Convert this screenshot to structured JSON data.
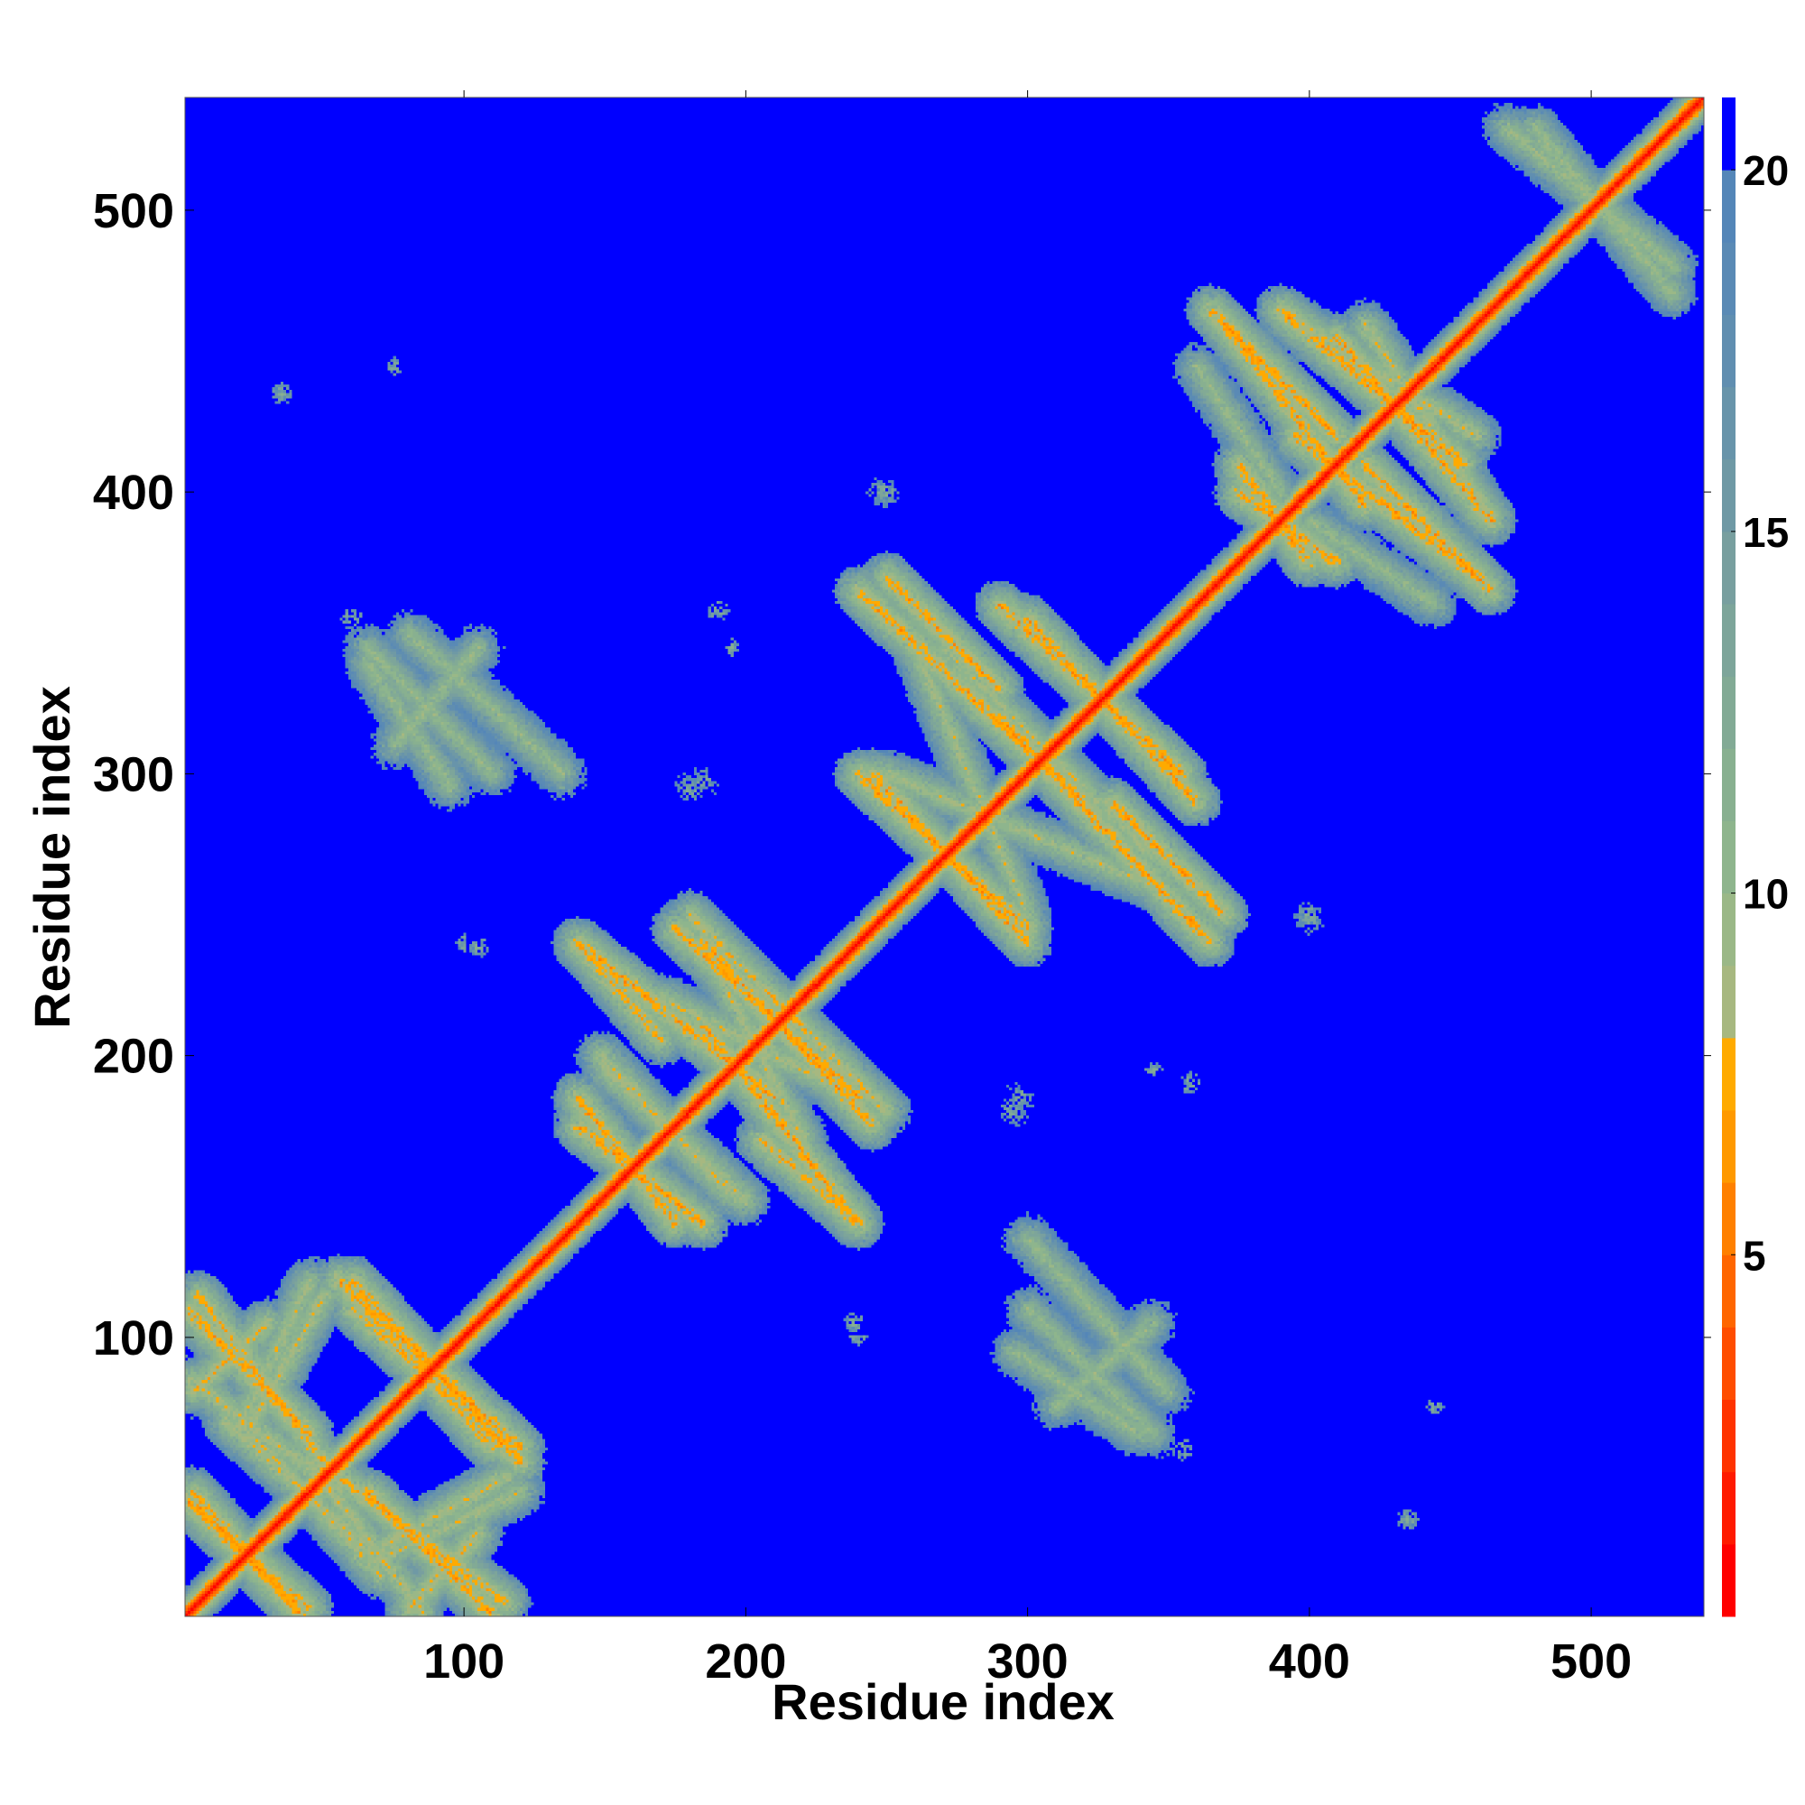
{
  "chart_data": {
    "type": "heatmap",
    "title": "",
    "xlabel": "Residue index",
    "ylabel": "Residue index",
    "n_residues": 540,
    "xlim": [
      1,
      540
    ],
    "ylim": [
      1,
      540
    ],
    "x_ticks": [
      "100",
      "200",
      "300",
      "400",
      "500"
    ],
    "y_ticks": [
      "100",
      "200",
      "300",
      "400",
      "500"
    ],
    "x_tick_values": [
      100,
      200,
      300,
      400,
      500
    ],
    "y_tick_values": [
      100,
      200,
      300,
      400,
      500
    ],
    "colorbar": {
      "range": [
        0,
        21
      ],
      "ticks": [
        "5",
        "10",
        "15",
        "20"
      ],
      "tick_values": [
        5,
        10,
        15,
        20
      ],
      "bins": [
        {
          "max": 1,
          "color": "#ff0000"
        },
        {
          "max": 2,
          "color": "#ff1a00"
        },
        {
          "max": 3,
          "color": "#ff3300"
        },
        {
          "max": 4,
          "color": "#ff4d00"
        },
        {
          "max": 5,
          "color": "#ff6600"
        },
        {
          "max": 6,
          "color": "#ff8000"
        },
        {
          "max": 7,
          "color": "#ff9900"
        },
        {
          "max": 8,
          "color": "#ffaa00"
        },
        {
          "max": 9,
          "color": "#a7b880"
        },
        {
          "max": 10,
          "color": "#9ab887"
        },
        {
          "max": 11,
          "color": "#8eb58d"
        },
        {
          "max": 12,
          "color": "#88b090"
        },
        {
          "max": 13,
          "color": "#82aa95"
        },
        {
          "max": 14,
          "color": "#7da59a"
        },
        {
          "max": 15,
          "color": "#789f9f"
        },
        {
          "max": 16,
          "color": "#6f99a5"
        },
        {
          "max": 17,
          "color": "#6894aa"
        },
        {
          "max": 18,
          "color": "#608eb0"
        },
        {
          "max": 19,
          "color": "#5a8ab5"
        },
        {
          "max": 20,
          "color": "#5486b8"
        },
        {
          "max": 21,
          "color": "#0000ff"
        }
      ]
    },
    "background_color": "#0000ff",
    "diagonal_band_color": "#ff0000",
    "contact_segments": [
      {
        "x1": 1,
        "y1": 110,
        "x2": 45,
        "y2": 65,
        "min": 5.5
      },
      {
        "x1": 3,
        "y1": 80,
        "x2": 30,
        "y2": 105,
        "min": 6.5
      },
      {
        "x1": 20,
        "y1": 68,
        "x2": 45,
        "y2": 120,
        "min": 7.5
      },
      {
        "x1": 2,
        "y1": 85,
        "x2": 55,
        "y2": 45,
        "min": 7
      },
      {
        "x1": 1,
        "y1": 42,
        "x2": 40,
        "y2": 5,
        "min": 5.5
      },
      {
        "x1": 3,
        "y1": 40,
        "x2": 45,
        "y2": 3,
        "min": 6
      },
      {
        "x1": 55,
        "y1": 120,
        "x2": 120,
        "y2": 60,
        "min": 5.5
      },
      {
        "x1": 60,
        "y1": 115,
        "x2": 110,
        "y2": 60,
        "min": 6
      },
      {
        "x1": 55,
        "y1": 50,
        "x2": 115,
        "y2": 5,
        "min": 6
      },
      {
        "x1": 70,
        "y1": 25,
        "x2": 115,
        "y2": 50,
        "min": 7
      },
      {
        "x1": 20,
        "y1": 70,
        "x2": 70,
        "y2": 15,
        "min": 7
      },
      {
        "x1": 140,
        "y1": 240,
        "x2": 170,
        "y2": 205,
        "min": 6
      },
      {
        "x1": 140,
        "y1": 175,
        "x2": 185,
        "y2": 140,
        "min": 5.5
      },
      {
        "x1": 150,
        "y1": 195,
        "x2": 200,
        "y2": 148,
        "min": 7
      },
      {
        "x1": 175,
        "y1": 245,
        "x2": 240,
        "y2": 185,
        "min": 5.5
      },
      {
        "x1": 170,
        "y1": 220,
        "x2": 240,
        "y2": 185,
        "min": 7
      },
      {
        "x1": 185,
        "y1": 210,
        "x2": 240,
        "y2": 140,
        "min": 5.5
      },
      {
        "x1": 180,
        "y1": 250,
        "x2": 220,
        "y2": 210,
        "min": 6.5
      },
      {
        "x1": 250,
        "y1": 370,
        "x2": 290,
        "y2": 330,
        "min": 5.5
      },
      {
        "x1": 245,
        "y1": 300,
        "x2": 300,
        "y2": 240,
        "min": 5.5
      },
      {
        "x1": 290,
        "y1": 360,
        "x2": 355,
        "y2": 300,
        "min": 5.5
      },
      {
        "x1": 290,
        "y1": 320,
        "x2": 365,
        "y2": 240,
        "min": 5.5
      },
      {
        "x1": 260,
        "y1": 345,
        "x2": 300,
        "y2": 250,
        "min": 7.5
      },
      {
        "x1": 295,
        "y1": 320,
        "x2": 345,
        "y2": 270,
        "min": 7.5
      },
      {
        "x1": 365,
        "y1": 465,
        "x2": 410,
        "y2": 420,
        "min": 5.5
      },
      {
        "x1": 375,
        "y1": 410,
        "x2": 400,
        "y2": 375,
        "min": 5.5
      },
      {
        "x1": 390,
        "y1": 465,
        "x2": 455,
        "y2": 410,
        "min": 5.5
      },
      {
        "x1": 395,
        "y1": 420,
        "x2": 460,
        "y2": 370,
        "min": 5.5
      },
      {
        "x1": 420,
        "y1": 460,
        "x2": 465,
        "y2": 390,
        "min": 7
      },
      {
        "x1": 360,
        "y1": 445,
        "x2": 390,
        "y2": 400,
        "min": 8.5
      },
      {
        "x1": 470,
        "y1": 530,
        "x2": 530,
        "y2": 480,
        "min": 8
      },
      {
        "x1": 65,
        "y1": 345,
        "x2": 110,
        "y2": 300,
        "min": 8.5
      },
      {
        "x1": 75,
        "y1": 310,
        "x2": 105,
        "y2": 345,
        "min": 8.5
      },
      {
        "x1": 300,
        "y1": 135,
        "x2": 350,
        "y2": 80,
        "min": 8.5
      },
      {
        "x1": 295,
        "y1": 95,
        "x2": 340,
        "y2": 65,
        "min": 8.5
      }
    ],
    "contact_blobs": [
      {
        "x": 135,
        "y": 300,
        "r": 7
      },
      {
        "x": 180,
        "y": 295,
        "r": 8
      },
      {
        "x": 297,
        "y": 185,
        "r": 8
      },
      {
        "x": 296,
        "y": 135,
        "r": 6
      },
      {
        "x": 248,
        "y": 400,
        "r": 6
      },
      {
        "x": 400,
        "y": 250,
        "r": 5
      },
      {
        "x": 355,
        "y": 60,
        "r": 4
      },
      {
        "x": 35,
        "y": 435,
        "r": 4
      },
      {
        "x": 100,
        "y": 240,
        "r": 3
      },
      {
        "x": 238,
        "y": 105,
        "r": 4
      },
      {
        "x": 436,
        "y": 35,
        "r": 3
      },
      {
        "x": 345,
        "y": 195,
        "r": 3
      },
      {
        "x": 190,
        "y": 358,
        "r": 4
      },
      {
        "x": 75,
        "y": 445,
        "r": 3
      }
    ]
  }
}
